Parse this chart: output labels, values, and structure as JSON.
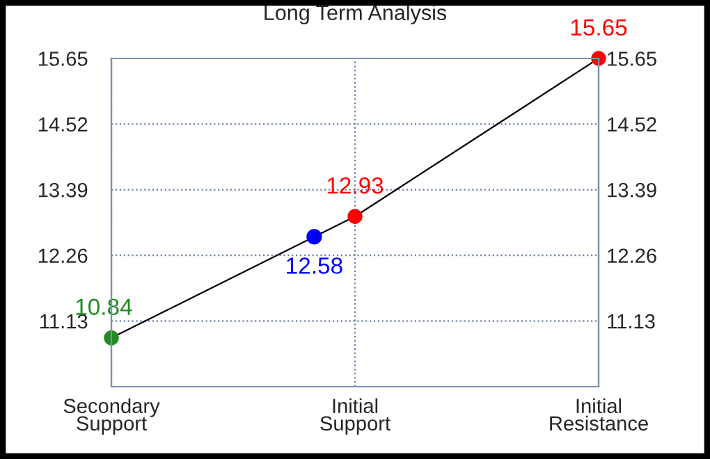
{
  "chart_data": {
    "type": "line",
    "title": "Long Term Analysis",
    "categories": [
      "Secondary\nSupport",
      "Initial\nSupport",
      "Initial\nResistance"
    ],
    "series": [
      {
        "color": "#000000",
        "colors": [
          "#228b22",
          "#ff0000",
          "#ff0000"
        ],
        "values": [
          10.84,
          12.93,
          15.65
        ]
      }
    ],
    "annotations": [
      {
        "text": "12.58",
        "y": 12.58
      }
    ],
    "ylim": [
      10.0,
      15.65
    ],
    "yticks": [
      11.13,
      12.26,
      13.39,
      14.52,
      15.65
    ],
    "y2lim": [
      10.0,
      15.65
    ],
    "y2ticks": [
      11.13,
      12.26,
      13.39,
      14.52,
      15.65
    ],
    "grid": true,
    "marker": "circle",
    "line_style": "solid",
    "data_labels": true
  }
}
